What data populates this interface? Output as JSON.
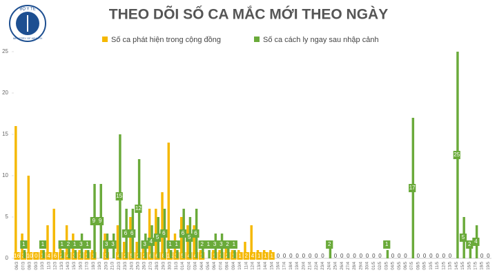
{
  "logo": {
    "text": "BỘ Y TẾ",
    "subtext": "MINISTRY OF HEALTH"
  },
  "chart_data": {
    "type": "bar",
    "title": "THEO DÕI SỐ CA MẮC MỚI THEO NGÀY",
    "categories": [
      "06/3",
      "07/3",
      "08/3",
      "09/3",
      "10/3",
      "11/3",
      "12/3",
      "13/3",
      "14/3",
      "15/3",
      "16/3",
      "17/3",
      "18/3",
      "19/3",
      "20/3",
      "21/3",
      "22/3",
      "23/3",
      "24/3",
      "25/3",
      "26/3",
      "27/3",
      "28/3",
      "29/3",
      "30/3",
      "31/3",
      "01/4",
      "02/4",
      "03/4",
      "04/4",
      "05/4",
      "06/4",
      "07/4",
      "08/4",
      "09/4",
      "10/4",
      "11/4",
      "12/4",
      "13/4",
      "14/4",
      "15/4",
      "16/4",
      "17/4",
      "18/4",
      "19/4",
      "20/4",
      "21/4",
      "22/4",
      "23/4",
      "24/4",
      "25/4",
      "26/4",
      "27/4",
      "28/4",
      "29/4",
      "30/4",
      "01/5",
      "02/5",
      "03/5",
      "04/5",
      "05/5",
      "06/5",
      "07/5",
      "08/5",
      "09/5",
      "10/5",
      "11/5",
      "12/5",
      "13/5",
      "14/5",
      "15/5",
      "16/5",
      "17/5",
      "18/5",
      "19/5"
    ],
    "series": [
      {
        "name": "Số ca phát hiện trong cộng đồng",
        "color": "#f5b800",
        "values": [
          16,
          3,
          10,
          0,
          1,
          4,
          6,
          2,
          4,
          3,
          1,
          1,
          1,
          0,
          3,
          0,
          4,
          2,
          5,
          2,
          2,
          6,
          6,
          8,
          14,
          3,
          5,
          4,
          4,
          1,
          0,
          1,
          1,
          2,
          1,
          1,
          2,
          4,
          1,
          1,
          1,
          0,
          0,
          0,
          0,
          0,
          0,
          0,
          0,
          0,
          0,
          0,
          0,
          0,
          0,
          0,
          0,
          0,
          0,
          0,
          0,
          0,
          0,
          0,
          0,
          0,
          0,
          0,
          0,
          0,
          0,
          0,
          0,
          0,
          0
        ]
      },
      {
        "name": "Số ca cách ly ngay sau nhập cảnh",
        "color": "#6aaa3a",
        "values": [
          0,
          1,
          0,
          0,
          1,
          0,
          0,
          1,
          2,
          1,
          3,
          1,
          9,
          9,
          3,
          3,
          15,
          6,
          6,
          12,
          3,
          4,
          5,
          6,
          1,
          1,
          6,
          5,
          6,
          2,
          1,
          3,
          3,
          2,
          1,
          0,
          0,
          0,
          0,
          0,
          0,
          0,
          0,
          0,
          0,
          0,
          0,
          0,
          0,
          2,
          0,
          0,
          0,
          0,
          0,
          0,
          0,
          0,
          1,
          0,
          0,
          0,
          17,
          0,
          0,
          0,
          0,
          0,
          0,
          25,
          5,
          2,
          4,
          0,
          0
        ]
      }
    ],
    "ylim": [
      0,
      25
    ],
    "yticks": [
      0,
      5,
      10,
      15,
      20,
      25
    ],
    "grid": false,
    "legend": "top"
  }
}
